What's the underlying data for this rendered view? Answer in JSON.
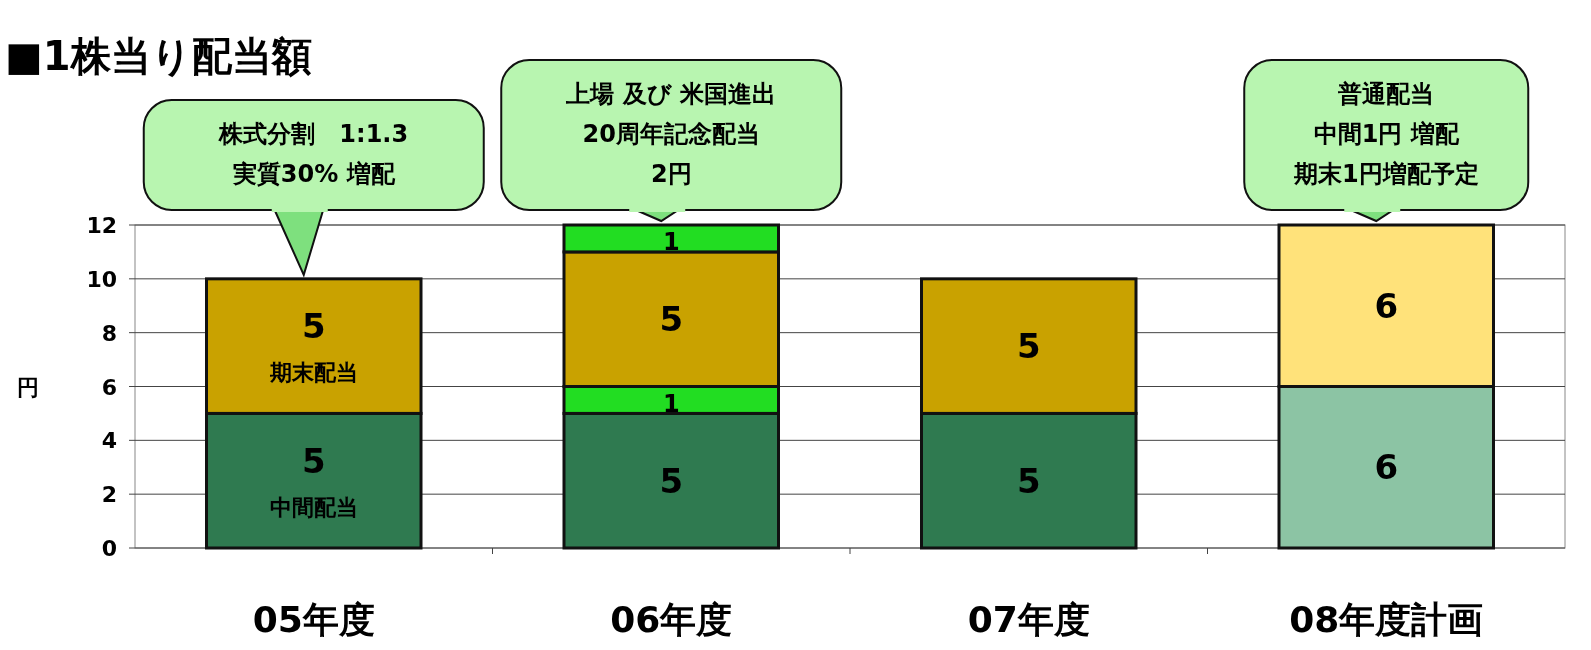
{
  "chart_data": {
    "type": "bar",
    "title": "■1株当り配当額",
    "ylabel": "円",
    "categories": [
      "05年度",
      "06年度",
      "07年度",
      "08年度計画"
    ],
    "stacked": true,
    "data_labels": true,
    "grid": "y",
    "ylim": [
      0,
      12
    ],
    "yticks": [
      0,
      2,
      4,
      6,
      8,
      10,
      12
    ],
    "series": [
      {
        "name": "中間配当",
        "colors": [
          "#2f7a50",
          "#2f7a50",
          "#2f7a50",
          "#8cc4a4"
        ],
        "values": [
          5,
          5,
          5,
          6
        ]
      },
      {
        "color": "#22dd22",
        "values": [
          null,
          1,
          null,
          null
        ]
      },
      {
        "name": "期末配当",
        "colors": [
          "#c9a200",
          "#c9a200",
          "#c9a200",
          "#ffe27a"
        ],
        "values": [
          5,
          5,
          5,
          6
        ]
      },
      {
        "color": "#22dd22",
        "values": [
          null,
          1,
          null,
          null
        ]
      }
    ],
    "annotations": [
      "株式分割　1:1.3",
      "実質30% 増配",
      "上場 及び 米国進出",
      "20周年記念配当",
      "2円",
      "普通配当",
      "中間1円 増配",
      "期末1円増配予定"
    ]
  }
}
